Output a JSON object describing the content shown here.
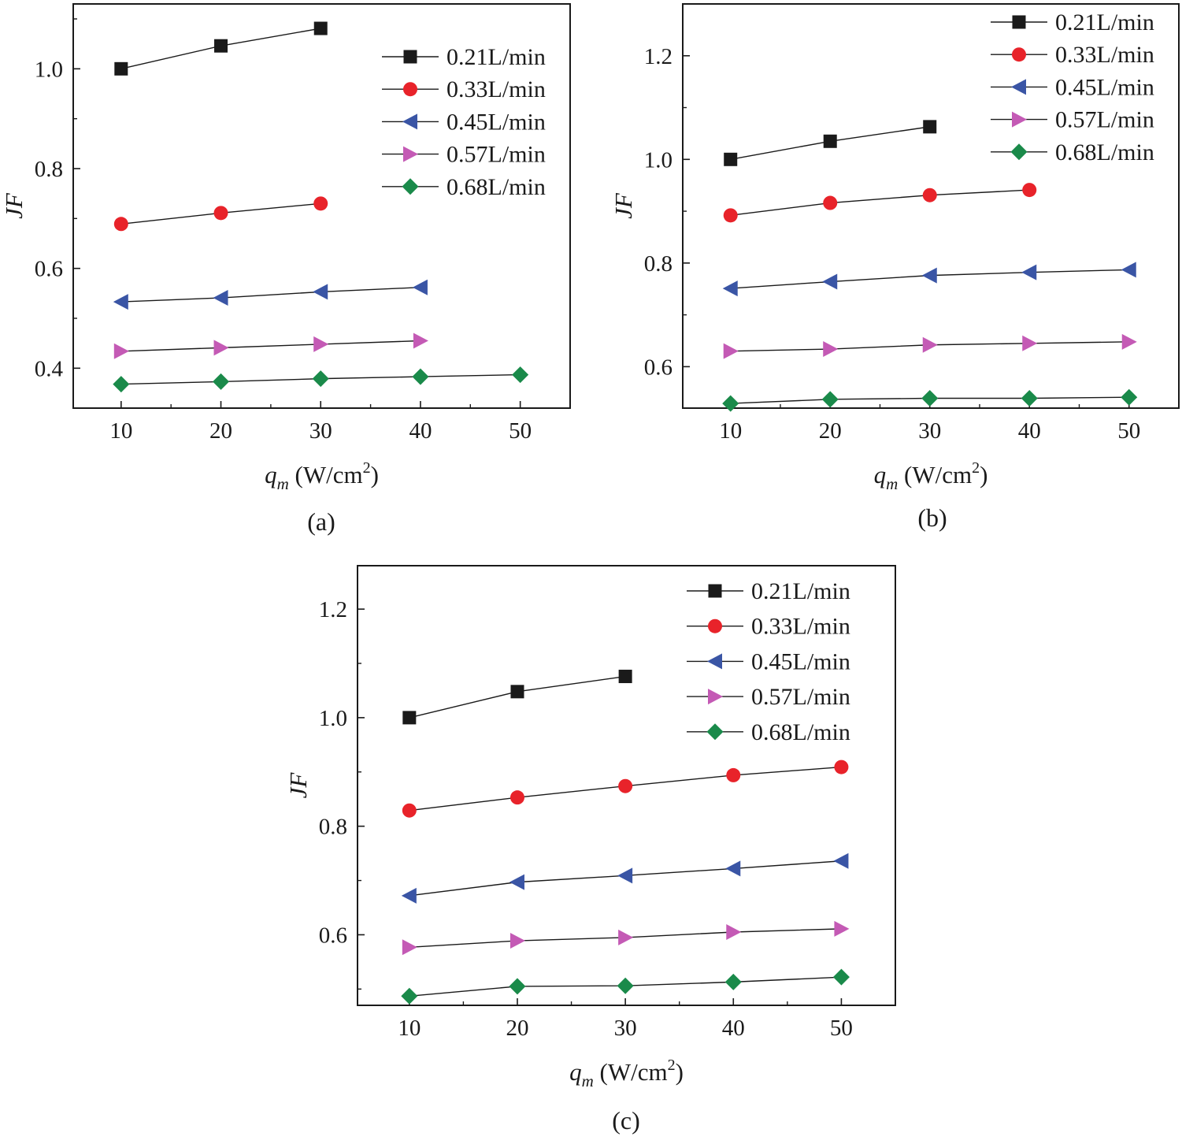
{
  "figure": {
    "panel_labels": [
      "(a)",
      "(b)",
      "(c)"
    ]
  },
  "colors": {
    "0.21L/min": "#1a1a1a",
    "0.33L/min": "#e8232a",
    "0.45L/min": "#3a55a5",
    "0.57L/min": "#c45ab5",
    "0.68L/min": "#1a8a4a"
  },
  "chart_data": [
    {
      "type": "line",
      "panel": "(a)",
      "xlabel": "q_m (W/cm^2)",
      "xlabel_parts": {
        "sym": "q",
        "sub": "m",
        "unit": "(W/cm",
        "sup": "2",
        "close": ")"
      },
      "ylabel": "JF",
      "xlim": [
        5.2,
        55
      ],
      "ylim": [
        0.32,
        1.13
      ],
      "xticks": [
        10,
        20,
        30,
        40,
        50
      ],
      "yticks": [
        0.4,
        0.6,
        0.8,
        1.0
      ],
      "xtick_labels": [
        "10",
        "20",
        "30",
        "40",
        "50"
      ],
      "ytick_labels": [
        "0.4",
        "0.6",
        "0.8",
        "1.0"
      ],
      "legend": "top-right",
      "series": [
        {
          "name": "0.21L/min",
          "marker": "square",
          "x": [
            10,
            20,
            30
          ],
          "values": [
            1.0,
            1.046,
            1.081
          ]
        },
        {
          "name": "0.33L/min",
          "marker": "circle",
          "x": [
            10,
            20,
            30
          ],
          "values": [
            0.689,
            0.711,
            0.73
          ]
        },
        {
          "name": "0.45L/min",
          "marker": "triangle-left",
          "x": [
            10,
            20,
            30,
            40
          ],
          "values": [
            0.533,
            0.541,
            0.553,
            0.562
          ]
        },
        {
          "name": "0.57L/min",
          "marker": "triangle-right",
          "x": [
            10,
            20,
            30,
            40
          ],
          "values": [
            0.434,
            0.441,
            0.448,
            0.455
          ]
        },
        {
          "name": "0.68L/min",
          "marker": "diamond",
          "x": [
            10,
            20,
            30,
            40,
            50
          ],
          "values": [
            0.368,
            0.373,
            0.379,
            0.383,
            0.387
          ]
        }
      ]
    },
    {
      "type": "line",
      "panel": "(b)",
      "xlabel": "q_m (W/cm^2)",
      "xlabel_parts": {
        "sym": "q",
        "sub": "m",
        "unit": "(W/cm",
        "sup": "2",
        "close": ")"
      },
      "ylabel": "JF",
      "xlim": [
        5.2,
        55
      ],
      "ylim": [
        0.52,
        1.3
      ],
      "xticks": [
        10,
        20,
        30,
        40,
        50
      ],
      "yticks": [
        0.6,
        0.8,
        1.0,
        1.2
      ],
      "xtick_labels": [
        "10",
        "20",
        "30",
        "40",
        "50"
      ],
      "ytick_labels": [
        "0.6",
        "0.8",
        "1.0",
        "1.2"
      ],
      "legend": "top-right",
      "series": [
        {
          "name": "0.21L/min",
          "marker": "square",
          "x": [
            10,
            20,
            30
          ],
          "values": [
            1.0,
            1.035,
            1.063
          ]
        },
        {
          "name": "0.33L/min",
          "marker": "circle",
          "x": [
            10,
            20,
            30,
            40
          ],
          "values": [
            0.892,
            0.916,
            0.931,
            0.941
          ]
        },
        {
          "name": "0.45L/min",
          "marker": "triangle-left",
          "x": [
            10,
            20,
            30,
            40,
            50
          ],
          "values": [
            0.751,
            0.764,
            0.776,
            0.782,
            0.787
          ]
        },
        {
          "name": "0.57L/min",
          "marker": "triangle-right",
          "x": [
            10,
            20,
            30,
            40,
            50
          ],
          "values": [
            0.63,
            0.634,
            0.642,
            0.645,
            0.648
          ]
        },
        {
          "name": "0.68L/min",
          "marker": "diamond",
          "x": [
            10,
            20,
            30,
            40,
            50
          ],
          "values": [
            0.529,
            0.537,
            0.539,
            0.539,
            0.541
          ]
        }
      ]
    },
    {
      "type": "line",
      "panel": "(c)",
      "xlabel": "q_m (W/cm^2)",
      "xlabel_parts": {
        "sym": "q",
        "sub": "m",
        "unit": "(W/cm",
        "sup": "2",
        "close": ")"
      },
      "ylabel": "JF",
      "xlim": [
        5.2,
        55
      ],
      "ylim": [
        0.47,
        1.28
      ],
      "xticks": [
        10,
        20,
        30,
        40,
        50
      ],
      "yticks": [
        0.6,
        0.8,
        1.0,
        1.2
      ],
      "xtick_labels": [
        "10",
        "20",
        "30",
        "40",
        "50"
      ],
      "ytick_labels": [
        "0.6",
        "0.8",
        "1.0",
        "1.2"
      ],
      "legend": "top-right",
      "series": [
        {
          "name": "0.21L/min",
          "marker": "square",
          "x": [
            10,
            20,
            30
          ],
          "values": [
            1.0,
            1.048,
            1.076
          ]
        },
        {
          "name": "0.33L/min",
          "marker": "circle",
          "x": [
            10,
            20,
            30,
            40,
            50
          ],
          "values": [
            0.829,
            0.853,
            0.874,
            0.894,
            0.909
          ]
        },
        {
          "name": "0.45L/min",
          "marker": "triangle-left",
          "x": [
            10,
            20,
            30,
            40,
            50
          ],
          "values": [
            0.672,
            0.697,
            0.709,
            0.722,
            0.736
          ]
        },
        {
          "name": "0.57L/min",
          "marker": "triangle-right",
          "x": [
            10,
            20,
            30,
            40,
            50
          ],
          "values": [
            0.577,
            0.589,
            0.595,
            0.605,
            0.611
          ]
        },
        {
          "name": "0.68L/min",
          "marker": "diamond",
          "x": [
            10,
            20,
            30,
            40,
            50
          ],
          "values": [
            0.487,
            0.505,
            0.506,
            0.513,
            0.522
          ]
        }
      ]
    }
  ]
}
